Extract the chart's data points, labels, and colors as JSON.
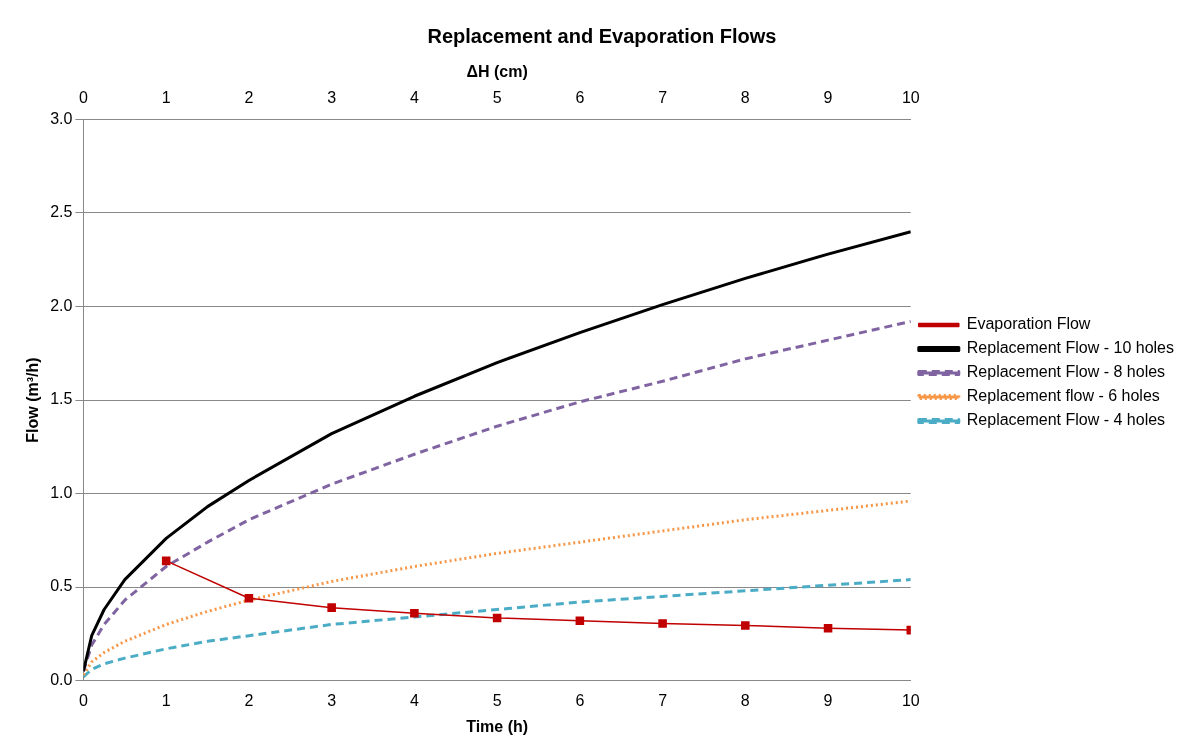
{
  "chart_data": {
    "type": "line",
    "title": "Replacement and Evaporation Flows",
    "xlabel": "Time (h)",
    "ylabel": "Flow (m³/h)",
    "x2label": "ΔH (cm)",
    "xlim": [
      0,
      10
    ],
    "xticks": [
      0,
      1,
      2,
      3,
      4,
      5,
      6,
      7,
      8,
      9,
      10
    ],
    "x2lim": [
      0,
      10
    ],
    "x2ticks": [
      0,
      1,
      2,
      3,
      4,
      5,
      6,
      7,
      8,
      9,
      10
    ],
    "ylim": [
      0,
      3
    ],
    "yticks": [
      {
        "value": 0,
        "label": "0.0"
      },
      {
        "value": 0.5,
        "label": "0.5"
      },
      {
        "value": 1,
        "label": "1.0"
      },
      {
        "value": 1.5,
        "label": "1.5"
      },
      {
        "value": 2,
        "label": "2.0"
      },
      {
        "value": 2.5,
        "label": "2.5"
      },
      {
        "value": 3,
        "label": "3.0"
      }
    ],
    "grid": "y",
    "legend": "right",
    "series": [
      {
        "name": "Evaporation Flow",
        "color": "#c00000",
        "marker": "square",
        "line_style": "solid",
        "x": [
          1,
          2,
          3,
          4,
          5,
          6,
          7,
          8,
          9,
          10
        ],
        "values": [
          0.64,
          0.44,
          0.39,
          0.36,
          0.335,
          0.32,
          0.305,
          0.295,
          0.28,
          0.27
        ]
      },
      {
        "name": "Replacement Flow - 10 holes",
        "color": "#000000",
        "marker": "none",
        "line_style": "solid",
        "x": [
          0,
          0.1,
          0.25,
          0.5,
          1,
          1.5,
          2,
          3,
          4,
          5,
          6,
          7,
          8,
          9,
          10
        ],
        "values": [
          0.05,
          0.24,
          0.38,
          0.54,
          0.76,
          0.93,
          1.07,
          1.32,
          1.52,
          1.7,
          1.86,
          2.01,
          2.15,
          2.28,
          2.4
        ]
      },
      {
        "name": "Replacement Flow - 8 holes",
        "color": "#8064a2",
        "marker": "none",
        "line_style": "dashed",
        "x": [
          0,
          0.1,
          0.25,
          0.5,
          1,
          1.5,
          2,
          3,
          4,
          5,
          6,
          7,
          8,
          9,
          10
        ],
        "values": [
          0.05,
          0.19,
          0.3,
          0.43,
          0.61,
          0.74,
          0.86,
          1.05,
          1.21,
          1.36,
          1.49,
          1.6,
          1.72,
          1.82,
          1.92
        ]
      },
      {
        "name": "Replacement flow - 6 holes",
        "color": "#f79646",
        "marker": "none",
        "line_style": "dotted",
        "x": [
          0,
          0.1,
          0.25,
          0.5,
          1,
          1.5,
          2,
          3,
          4,
          5,
          6,
          7,
          8,
          9,
          10
        ],
        "values": [
          0.03,
          0.1,
          0.15,
          0.21,
          0.3,
          0.37,
          0.43,
          0.53,
          0.61,
          0.68,
          0.74,
          0.8,
          0.86,
          0.91,
          0.96
        ]
      },
      {
        "name": "Replacement Flow - 4 holes",
        "color": "#4bacc6",
        "marker": "none",
        "line_style": "dashed",
        "x": [
          0,
          0.1,
          0.25,
          0.5,
          1,
          1.5,
          2,
          3,
          4,
          5,
          6,
          7,
          8,
          9,
          10
        ],
        "values": [
          0.02,
          0.06,
          0.09,
          0.12,
          0.17,
          0.21,
          0.24,
          0.3,
          0.34,
          0.38,
          0.42,
          0.45,
          0.48,
          0.51,
          0.54
        ]
      }
    ]
  }
}
